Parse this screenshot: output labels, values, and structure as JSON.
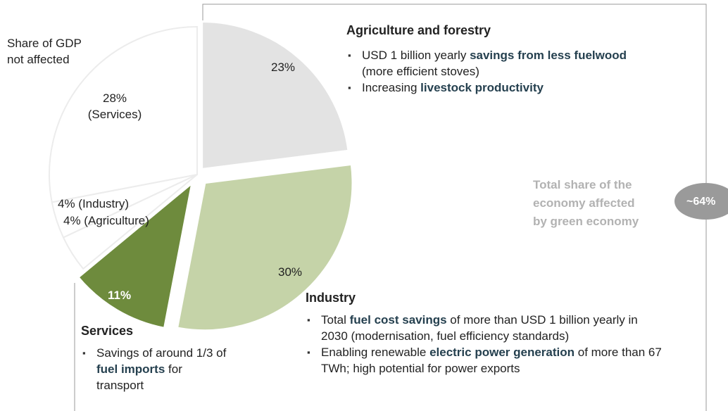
{
  "chart_data": {
    "type": "pie",
    "slices": [
      {
        "key": "agriculture",
        "label": "23%",
        "value": 23,
        "color": "#e3e3e3"
      },
      {
        "key": "industry",
        "label": "30%",
        "value": 30,
        "color": "#c5d3a8"
      },
      {
        "key": "services",
        "label": "11%",
        "value": 11,
        "color": "#6e8b3d"
      },
      {
        "key": "industry_not_affected",
        "label": "4% (Industry)",
        "value": 4,
        "color": "#ffffff"
      },
      {
        "key": "agriculture_not_affected",
        "label": "4% (Agriculture)",
        "value": 4,
        "color": "#ffffff"
      },
      {
        "key": "services_not_affected",
        "label": "28%\n(Services)",
        "value": 28,
        "color": "#ffffff"
      }
    ],
    "not_affected_label": "Share of GDP\nnot affected",
    "total": {
      "text": "Total share of the\neconomy affected\nby green economy",
      "badge": "~64%"
    }
  },
  "sections": {
    "agriculture": {
      "title": "Agriculture and forestry",
      "bullets": [
        [
          {
            "t": "USD 1 billion yearly "
          },
          {
            "t": "savings from less fuelwood",
            "hl": true
          },
          {
            "t": " (more efficient stoves)"
          }
        ],
        [
          {
            "t": "Increasing "
          },
          {
            "t": "livestock productivity",
            "hl": true
          }
        ]
      ]
    },
    "industry": {
      "title": "Industry",
      "bullets": [
        [
          {
            "t": "Total "
          },
          {
            "t": "fuel cost savings",
            "hl": true
          },
          {
            "t": " of more than USD 1 billion yearly in 2030 (modernisation, fuel efficiency standards)"
          }
        ],
        [
          {
            "t": "Enabling renewable "
          },
          {
            "t": "electric power generation",
            "hl": true
          },
          {
            "t": " of more than 67 TWh; high potential for power exports"
          }
        ]
      ]
    },
    "services": {
      "title": "Services",
      "bullets": [
        [
          {
            "t": "Savings of around 1/3 of "
          },
          {
            "t": "fuel imports",
            "hl": true
          },
          {
            "t": " for transport"
          }
        ]
      ]
    }
  }
}
